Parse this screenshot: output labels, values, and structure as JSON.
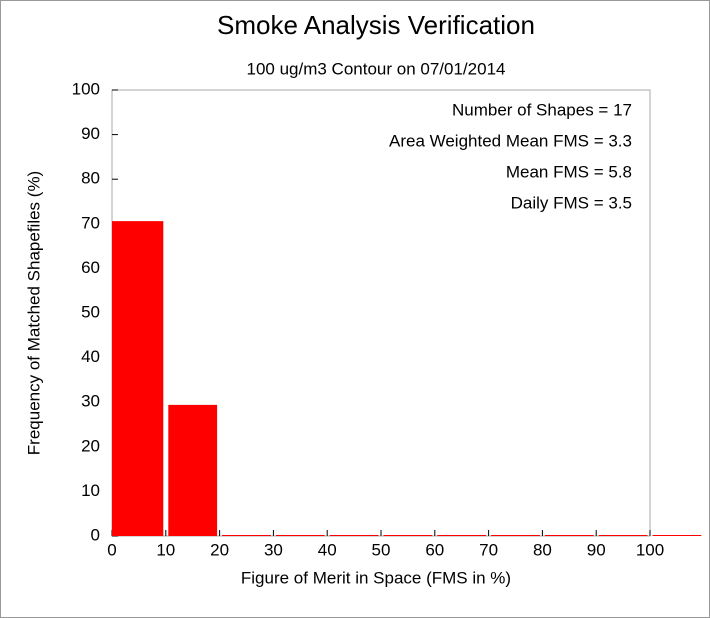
{
  "chart_data": {
    "type": "histogram",
    "title": "Smoke Analysis Verification",
    "subtitle": "100 ug/m3 Contour on 07/01/2014",
    "x_label": "Figure of Merit in Space (FMS in %)",
    "y_label": "Frequency of Matched Shapefiles (%)",
    "annotations": [
      "Number of Shapes = 17",
      "Area Weighted Mean FMS = 3.3",
      "Mean FMS = 5.8",
      "Daily FMS = 3.5"
    ],
    "bins": [
      0,
      10,
      20,
      30,
      40,
      50,
      60,
      70,
      80,
      90,
      100,
      110
    ],
    "values": [
      70.6,
      29.4,
      0,
      0,
      0,
      0,
      0,
      0,
      0,
      0,
      0
    ],
    "color": "#ff0000",
    "xlim": [
      0,
      100
    ],
    "xticks": [
      0,
      10,
      20,
      30,
      40,
      50,
      60,
      70,
      80,
      90,
      100
    ],
    "ylim": [
      0,
      100
    ],
    "yticks": [
      0,
      10,
      20,
      30,
      40,
      50,
      60,
      70,
      80,
      90,
      100
    ]
  }
}
